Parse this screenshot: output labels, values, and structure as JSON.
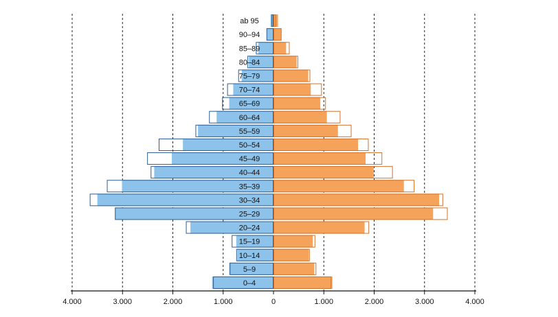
{
  "chart_data": {
    "type": "population_pyramid",
    "title": "",
    "categories_bottom_to_top": [
      "0–4",
      "5–9",
      "10–14",
      "15–19",
      "20–24",
      "25–29",
      "30–34",
      "35–39",
      "40–44",
      "45–49",
      "50–54",
      "55–59",
      "60–64",
      "65–69",
      "70–74",
      "75–79",
      "80–84",
      "85–89",
      "90–94",
      "ab 95"
    ],
    "xlim": [
      -4000,
      4000
    ],
    "x_ticks": [
      -4000,
      -3000,
      -2000,
      -1000,
      0,
      1000,
      2000,
      3000,
      4000
    ],
    "x_tick_labels": [
      "4.000",
      "3.000",
      "2.000",
      "1.000",
      "0",
      "1.000",
      "2.000",
      "3.000",
      "4.000"
    ],
    "grid": "dashed-vertical",
    "series": [
      {
        "name": "left-filled",
        "side": "left",
        "style": "filled",
        "color": "#8dc3ea",
        "values": [
          1220,
          880,
          720,
          740,
          1650,
          3150,
          3500,
          3010,
          2370,
          2020,
          1800,
          1500,
          1130,
          880,
          800,
          630,
          490,
          300,
          130,
          60
        ]
      },
      {
        "name": "left-outline",
        "side": "left",
        "style": "outline",
        "color": "#2d5d92",
        "values": [
          1200,
          870,
          740,
          830,
          1740,
          3150,
          3650,
          3310,
          2440,
          2510,
          2280,
          1550,
          1280,
          1020,
          920,
          700,
          520,
          350,
          140,
          40
        ]
      },
      {
        "name": "right-filled",
        "side": "right",
        "style": "filled",
        "color": "#f5a25b",
        "values": [
          1170,
          810,
          700,
          780,
          1810,
          3170,
          3290,
          2590,
          1990,
          1830,
          1680,
          1280,
          1060,
          930,
          740,
          690,
          460,
          250,
          150,
          90
        ]
      },
      {
        "name": "right-outline",
        "side": "right",
        "style": "outline",
        "color": "#d2722a",
        "values": [
          1150,
          850,
          720,
          830,
          1900,
          3460,
          3370,
          2800,
          2370,
          2160,
          1890,
          1550,
          1330,
          1040,
          960,
          730,
          490,
          320,
          160,
          50
        ]
      }
    ]
  },
  "colors": {
    "left_fill": "#8dc3ea",
    "left_stroke": "#2d5d92",
    "right_fill": "#f5a25b",
    "right_stroke": "#d2722a",
    "grid": "#222222",
    "axis": "#111111"
  }
}
